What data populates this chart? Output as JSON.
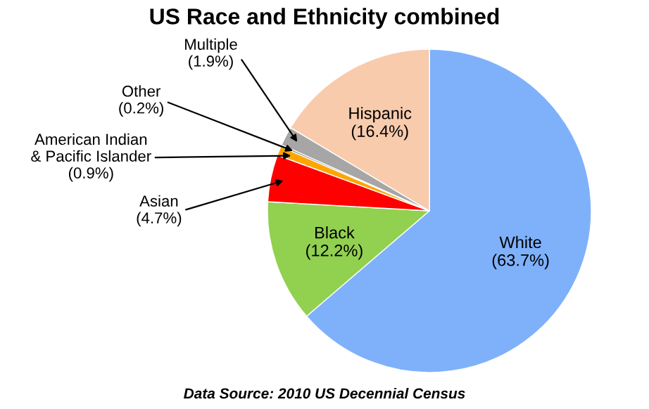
{
  "chart_data": {
    "type": "pie",
    "title": "US Race and Ethnicity combined",
    "categories": [
      "White",
      "Black",
      "Asian",
      "American Indian\n& Pacific Islander",
      "Other",
      "Multiple",
      "Hispanic"
    ],
    "values": [
      63.7,
      12.2,
      4.7,
      0.9,
      0.2,
      1.9,
      16.4
    ],
    "value_labels": [
      "(63.7%)",
      "(12.2%)",
      "(4.7%)",
      "(0.9%)",
      "(0.2%)",
      "(1.9%)",
      "(16.4%)"
    ],
    "colors": [
      "#7fb1fb",
      "#92d050",
      "#ff0000",
      "#ffa500",
      "#7f7f7f",
      "#a6a6a6",
      "#f8cbad"
    ],
    "annotations": [
      "Data Source: 2010 US Decennial Census"
    ]
  }
}
